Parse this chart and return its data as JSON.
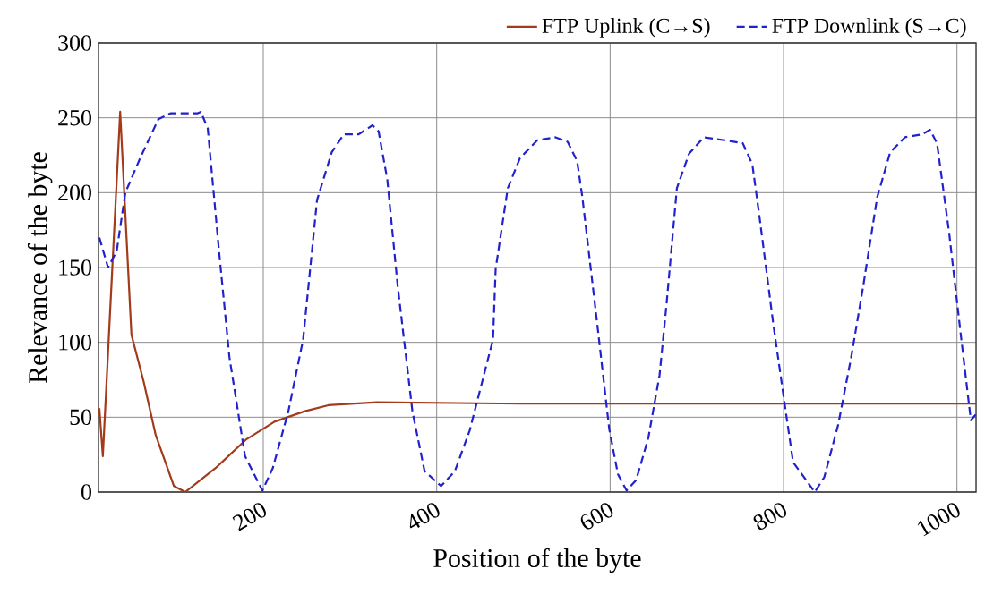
{
  "chart_data": {
    "type": "line",
    "xlabel": "Position of the byte",
    "ylabel": "Relevance of the byte",
    "xlim": [
      10,
      1022
    ],
    "ylim": [
      0,
      300
    ],
    "xticks": [
      200,
      400,
      600,
      800,
      1000
    ],
    "yticks": [
      0,
      50,
      100,
      150,
      200,
      250,
      300
    ],
    "grid": true,
    "legend": "top right",
    "series": [
      {
        "name": "FTP Uplink (C→S)",
        "color": "#a33a1a",
        "line_style": "solid",
        "x": [
          11,
          15,
          35,
          48,
          62,
          76,
          97,
          110,
          145,
          180,
          213,
          248,
          275,
          331,
          500,
          700,
          900,
          1022
        ],
        "values": [
          56,
          24,
          254,
          105,
          74,
          38,
          4,
          0,
          16,
          35,
          47,
          54,
          58,
          60,
          59,
          59,
          59,
          59
        ]
      },
      {
        "name": "FTP Downlink (S→C)",
        "color": "#2222cc",
        "line_style": "dashed",
        "x": [
          11,
          21,
          31,
          41,
          58,
          79,
          93,
          124,
          128,
          136,
          149,
          161,
          179,
          199,
          211,
          229,
          246,
          262,
          279,
          293,
          310,
          326,
          333,
          343,
          355,
          372,
          386,
          405,
          421,
          438,
          465,
          468,
          482,
          496,
          516,
          537,
          551,
          562,
          568,
          585,
          599,
          609,
          619,
          630,
          644,
          657,
          665,
          677,
          691,
          708,
          732,
          753,
          764,
          772,
          788,
          801,
          811,
          836,
          847,
          863,
          878,
          892,
          908,
          923,
          940,
          960,
          969,
          977,
          991,
          1005,
          1016,
          1022
        ],
        "values": [
          170,
          150,
          161,
          200,
          223,
          249,
          253,
          253,
          254,
          243,
          161,
          90,
          24,
          1,
          16,
          54,
          102,
          195,
          227,
          239,
          239,
          245,
          241,
          209,
          138,
          54,
          14,
          4,
          14,
          41,
          102,
          149,
          203,
          223,
          235,
          237,
          234,
          221,
          197,
          113,
          42,
          12,
          1,
          8,
          36,
          78,
          125,
          203,
          226,
          237,
          235,
          233,
          219,
          185,
          113,
          60,
          20,
          0,
          10,
          45,
          90,
          138,
          197,
          227,
          237,
          239,
          242,
          233,
          173,
          102,
          48,
          52
        ]
      }
    ]
  }
}
